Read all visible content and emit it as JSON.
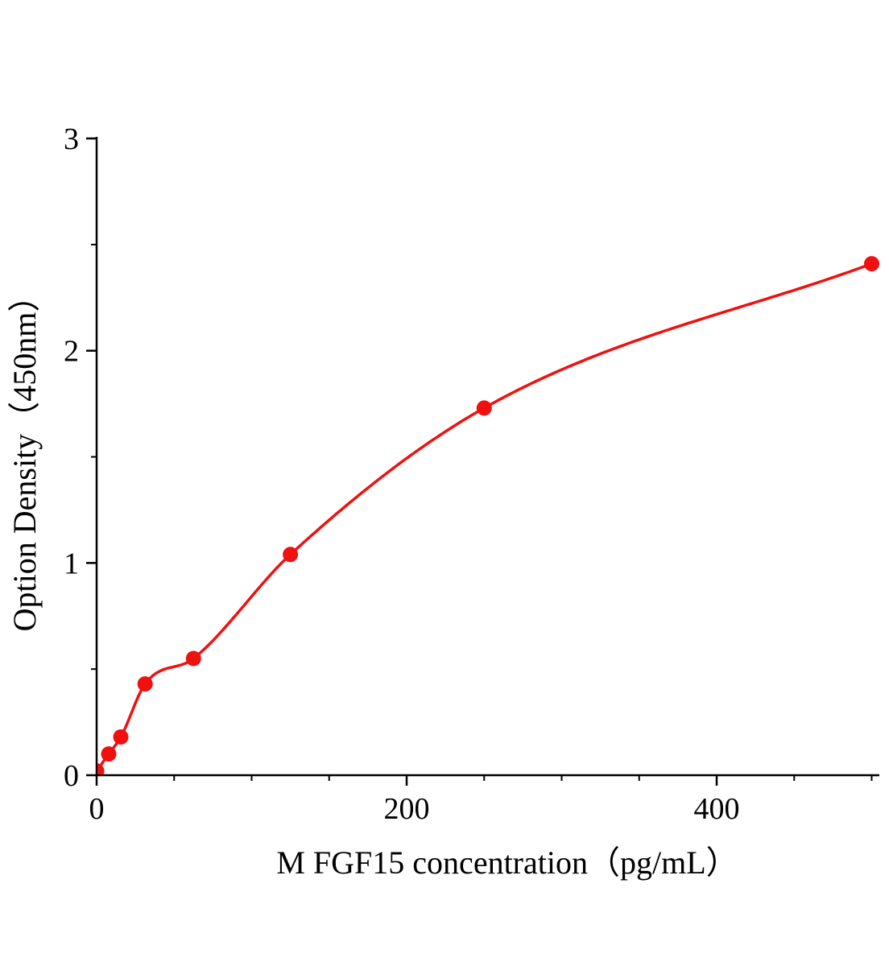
{
  "page": {
    "background_color": "#ffffff"
  },
  "chart_data": {
    "type": "scatter",
    "title": "",
    "xlabel": "M FGF15 concentration（pg/mL）",
    "ylabel": "Option Density（450nm）",
    "x": [
      0,
      7.8,
      15.6,
      31.25,
      62.5,
      125,
      250,
      500
    ],
    "y": [
      0.02,
      0.1,
      0.18,
      0.43,
      0.55,
      1.04,
      1.73,
      2.41
    ],
    "curve": "smooth fit through points",
    "xlim": [
      0,
      505
    ],
    "ylim": [
      0,
      3
    ],
    "x_major_ticks": [
      0,
      200,
      400
    ],
    "x_minor_ticks": [
      50,
      100,
      150,
      250,
      300,
      350,
      450,
      500
    ],
    "y_major_ticks": [
      0,
      1,
      2,
      3
    ],
    "y_minor_ticks": [
      0.5,
      1.5,
      2.5
    ],
    "x_tick_labels": [
      "0",
      "200",
      "400"
    ],
    "y_tick_labels": [
      "0",
      "1",
      "2",
      "3"
    ],
    "grid": false,
    "legend": "none",
    "marker_color": "#f01010",
    "line_color": "#f01010",
    "axis_color": "#000000"
  }
}
